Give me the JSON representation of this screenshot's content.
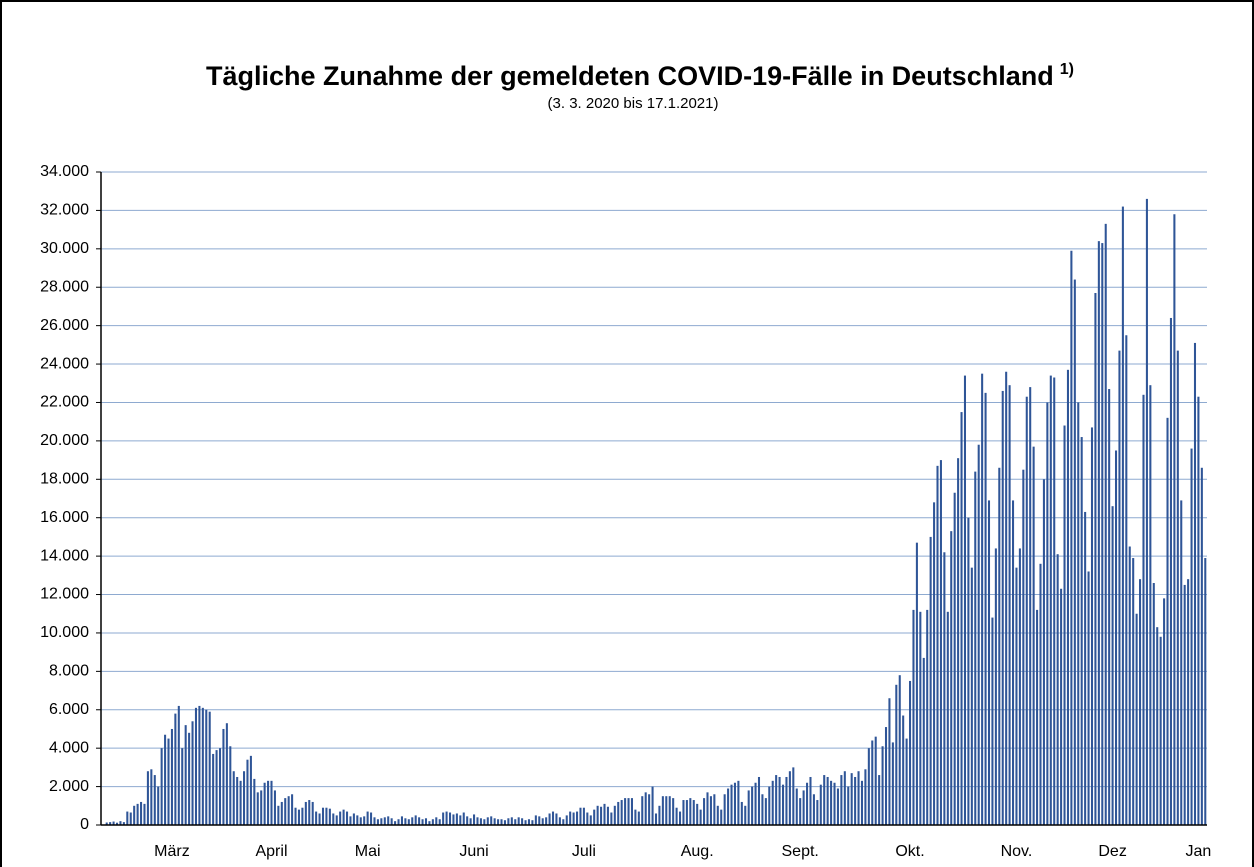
{
  "chart_data": {
    "type": "bar",
    "title": "Tägliche Zunahme der gemeldeten COVID-19-Fälle in Deutschland",
    "title_note": "1)",
    "subtitle": "(3. 3. 2020 bis 17.1.2021)",
    "color": "#2f5597",
    "grid": true,
    "grid_color": "#8eaad0",
    "ylim": [
      0,
      34000
    ],
    "yticks": [
      0,
      {
        "value": 2000,
        "label": "2.000"
      },
      {
        "value": 4000,
        "label": "4.000"
      },
      {
        "value": 6000,
        "label": "6.000"
      },
      {
        "value": 8000,
        "label": "8.000"
      },
      {
        "value": 10000,
        "label": "10.000"
      },
      {
        "value": 12000,
        "label": "12.000"
      },
      {
        "value": 14000,
        "label": "14.000"
      },
      {
        "value": 16000,
        "label": "16.000"
      },
      {
        "value": 18000,
        "label": "18.000"
      },
      {
        "value": 20000,
        "label": "20.000"
      },
      {
        "value": 22000,
        "label": "22.000"
      },
      {
        "value": 24000,
        "label": "24.000"
      },
      {
        "value": 26000,
        "label": "26.000"
      },
      {
        "value": 28000,
        "label": "28.000"
      },
      {
        "value": 30000,
        "label": "30.000"
      },
      {
        "value": 32000,
        "label": "32.000"
      },
      {
        "value": 34000,
        "label": "34.000"
      }
    ],
    "categories": [
      null,
      null,
      null,
      null,
      null,
      null,
      null,
      null,
      null,
      null,
      null,
      null,
      null,
      null,
      null,
      null,
      null,
      null,
      null,
      "März",
      null,
      null,
      null,
      null,
      null,
      null,
      null,
      null,
      null,
      null,
      null,
      null,
      null,
      null,
      null,
      null,
      null,
      null,
      null,
      null,
      null,
      null,
      null,
      null,
      null,
      null,
      null,
      null,
      "April",
      null,
      null,
      null,
      null,
      null,
      null,
      null,
      null,
      null,
      null,
      null,
      null,
      null,
      null,
      null,
      null,
      null,
      null,
      null,
      null,
      null,
      null,
      null,
      null,
      null,
      null,
      null,
      "Mai",
      null,
      null,
      null,
      null,
      null,
      null,
      null,
      null,
      null,
      null,
      null,
      null,
      null,
      null,
      null,
      null,
      null,
      null,
      null,
      null,
      null,
      null,
      null,
      null,
      null,
      null,
      null,
      null,
      null,
      null,
      "Juni",
      null,
      null,
      null,
      null,
      null,
      null,
      null,
      null,
      null,
      null,
      null,
      null,
      null,
      null,
      null,
      null,
      null,
      null,
      null,
      null,
      null,
      null,
      null,
      null,
      null,
      null,
      null,
      null,
      null,
      null,
      null,
      "Juli",
      null,
      null,
      null,
      null,
      null,
      null,
      null,
      null,
      null,
      null,
      null,
      null,
      null,
      null,
      null,
      null,
      null,
      null,
      null,
      null,
      null,
      null,
      null,
      null,
      null,
      null,
      null,
      null,
      null,
      null,
      null,
      null,
      "Aug.",
      null,
      null,
      null,
      null,
      null,
      null,
      null,
      null,
      null,
      null,
      null,
      null,
      null,
      null,
      null,
      null,
      null,
      null,
      null,
      null,
      null,
      null,
      null,
      null,
      null,
      null,
      null,
      null,
      null,
      "Sept.",
      null,
      null,
      null,
      null,
      null,
      null,
      null,
      null,
      null,
      null,
      null,
      null,
      null,
      null,
      null,
      null,
      null,
      null,
      null,
      null,
      null,
      null,
      null,
      null,
      null,
      null,
      null,
      null,
      null,
      null,
      null,
      "Okt.",
      null,
      null,
      null,
      null,
      null,
      null,
      null,
      null,
      null,
      null,
      null,
      null,
      null,
      null,
      null,
      null,
      null,
      null,
      null,
      null,
      null,
      null,
      null,
      null,
      null,
      null,
      null,
      null,
      null,
      null,
      "Nov.",
      null,
      null,
      null,
      null,
      null,
      null,
      null,
      null,
      null,
      null,
      null,
      null,
      null,
      null,
      null,
      null,
      null,
      null,
      null,
      null,
      null,
      null,
      null,
      null,
      null,
      null,
      null,
      "Dez",
      null,
      null,
      null,
      null,
      null,
      null,
      null,
      null,
      null,
      null,
      null,
      null,
      null,
      null,
      null,
      null,
      null,
      null,
      null,
      null,
      null,
      null,
      null,
      null,
      "Jan",
      null,
      null
    ],
    "values": [
      130,
      150,
      180,
      120,
      200,
      150,
      700,
      650,
      1000,
      1100,
      1200,
      1100,
      2800,
      2900,
      2600,
      2000,
      4000,
      4700,
      4500,
      5000,
      5800,
      6200,
      4000,
      5200,
      4800,
      5400,
      6100,
      6200,
      6100,
      6000,
      5900,
      3700,
      3900,
      4000,
      5000,
      5300,
      4100,
      2800,
      2500,
      2300,
      2800,
      3400,
      3600,
      2400,
      1700,
      1800,
      2200,
      2300,
      2300,
      1800,
      1000,
      1200,
      1400,
      1500,
      1600,
      900,
      800,
      900,
      1200,
      1300,
      1200,
      700,
      600,
      900,
      900,
      850,
      600,
      500,
      700,
      800,
      700,
      450,
      600,
      500,
      400,
      450,
      700,
      650,
      400,
      300,
      350,
      400,
      450,
      350,
      200,
      300,
      450,
      350,
      300,
      400,
      500,
      400,
      300,
      350,
      200,
      300,
      400,
      300,
      650,
      700,
      650,
      550,
      600,
      500,
      650,
      450,
      350,
      550,
      400,
      350,
      300,
      400,
      450,
      350,
      300,
      300,
      250,
      350,
      400,
      300,
      400,
      350,
      250,
      300,
      250,
      500,
      450,
      350,
      400,
      600,
      700,
      600,
      400,
      300,
      500,
      700,
      650,
      700,
      900,
      900,
      650,
      500,
      800,
      1000,
      950,
      1100,
      950,
      650,
      1000,
      1200,
      1300,
      1400,
      1400,
      1400,
      800,
      700,
      1500,
      1700,
      1600,
      2000,
      600,
      1000,
      1500,
      1500,
      1500,
      1400,
      900,
      700,
      1300,
      1300,
      1400,
      1300,
      1100,
      800,
      1400,
      1700,
      1500,
      1600,
      1000,
      800,
      1600,
      1900,
      2100,
      2200,
      2300,
      1200,
      1000,
      1800,
      2000,
      2200,
      2500,
      1600,
      1400,
      2000,
      2300,
      2600,
      2500,
      2100,
      2500,
      2800,
      3000,
      1900,
      1400,
      1800,
      2200,
      2500,
      1600,
      1300,
      2100,
      2600,
      2500,
      2300,
      2200,
      1900,
      2600,
      2800,
      2000,
      2700,
      2500,
      2800,
      2300,
      2900,
      4000,
      4400,
      4600,
      2600,
      4100,
      5100,
      6600,
      4300,
      7300,
      7800,
      5700,
      4500,
      7500,
      11200,
      14700,
      11100,
      8700,
      11200,
      15000,
      16800,
      18700,
      19000,
      14200,
      11100,
      15300,
      17300,
      19100,
      21500,
      23400,
      16000,
      13400,
      18400,
      19800,
      23500,
      22500,
      16900,
      10800,
      14400,
      18600,
      22600,
      23600,
      22900,
      16900,
      13400,
      14400,
      18500,
      22300,
      22800,
      19700,
      11200,
      13600,
      18000,
      22000,
      23400,
      23300,
      14100,
      12300,
      20800,
      23700,
      29900,
      28400,
      22000,
      20200,
      16300,
      13200,
      20700,
      27700,
      30400,
      30300,
      31300,
      22700,
      16600,
      19500,
      24700,
      32200,
      25500,
      14500,
      13900,
      11000,
      12800,
      22400,
      32600,
      22900,
      12600,
      10300,
      9800,
      11800,
      21200,
      26400,
      31800,
      24700,
      16900,
      12500,
      12800,
      19600,
      25100,
      22300,
      18600,
      13900
    ]
  }
}
